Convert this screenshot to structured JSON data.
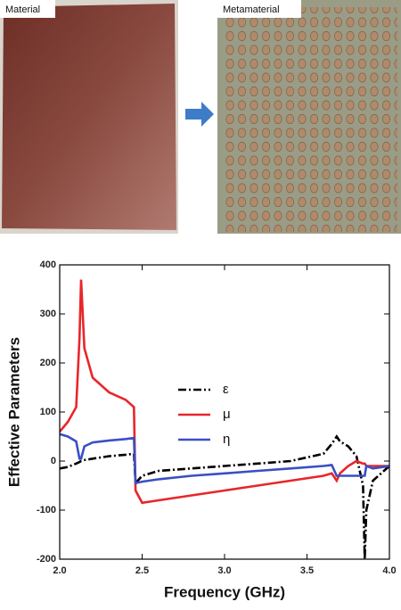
{
  "images": {
    "left_label": "Material",
    "right_label": "Metamaterial"
  },
  "chart_data": {
    "type": "line",
    "x_label": "Frequency (GHz)",
    "y_label": "Effective Parameters",
    "x": [
      2.0,
      2.05,
      2.1,
      2.12,
      2.13,
      2.15,
      2.2,
      2.3,
      2.4,
      2.45,
      2.46,
      2.5,
      2.6,
      2.8,
      3.0,
      3.2,
      3.4,
      3.6,
      3.65,
      3.68,
      3.7,
      3.75,
      3.8,
      3.84,
      3.85,
      3.86,
      3.9,
      4.0
    ],
    "series": [
      {
        "name": "ε",
        "color": "#000000",
        "line_style": "dashdot",
        "values": [
          -15,
          -12,
          -5,
          -2,
          0,
          2,
          5,
          10,
          13,
          15,
          -45,
          -30,
          -20,
          -15,
          -10,
          -5,
          0,
          15,
          35,
          50,
          40,
          30,
          10,
          -50,
          -200,
          -100,
          -40,
          -10
        ]
      },
      {
        "name": "μ",
        "color": "#e8262a",
        "line_style": "solid",
        "values": [
          60,
          80,
          110,
          250,
          370,
          230,
          170,
          140,
          125,
          110,
          -60,
          -85,
          -80,
          -70,
          -60,
          -50,
          -40,
          -30,
          -25,
          -40,
          -25,
          -10,
          0,
          -5,
          -5,
          -10,
          -10,
          -10
        ]
      },
      {
        "name": "η",
        "color": "#3a4fc4",
        "line_style": "solid",
        "values": [
          55,
          50,
          40,
          5,
          5,
          30,
          38,
          42,
          45,
          47,
          -45,
          -42,
          -37,
          -30,
          -25,
          -20,
          -15,
          -10,
          -8,
          -30,
          -30,
          -30,
          -30,
          -30,
          -30,
          -10,
          -15,
          -10
        ]
      }
    ],
    "xlim": [
      2.0,
      4.0
    ],
    "xticks": [
      {
        "value": 2.0,
        "label": "2.0"
      },
      {
        "value": 2.5,
        "label": "2.5"
      },
      {
        "value": 3.0,
        "label": "3.0"
      },
      {
        "value": 3.5,
        "label": "3.5"
      },
      {
        "value": 4.0,
        "label": "4.0"
      }
    ],
    "ylim": [
      -200,
      400
    ],
    "yticks": [
      -200,
      -100,
      0,
      100,
      200,
      300,
      400
    ],
    "grid": false,
    "legend": "center"
  }
}
